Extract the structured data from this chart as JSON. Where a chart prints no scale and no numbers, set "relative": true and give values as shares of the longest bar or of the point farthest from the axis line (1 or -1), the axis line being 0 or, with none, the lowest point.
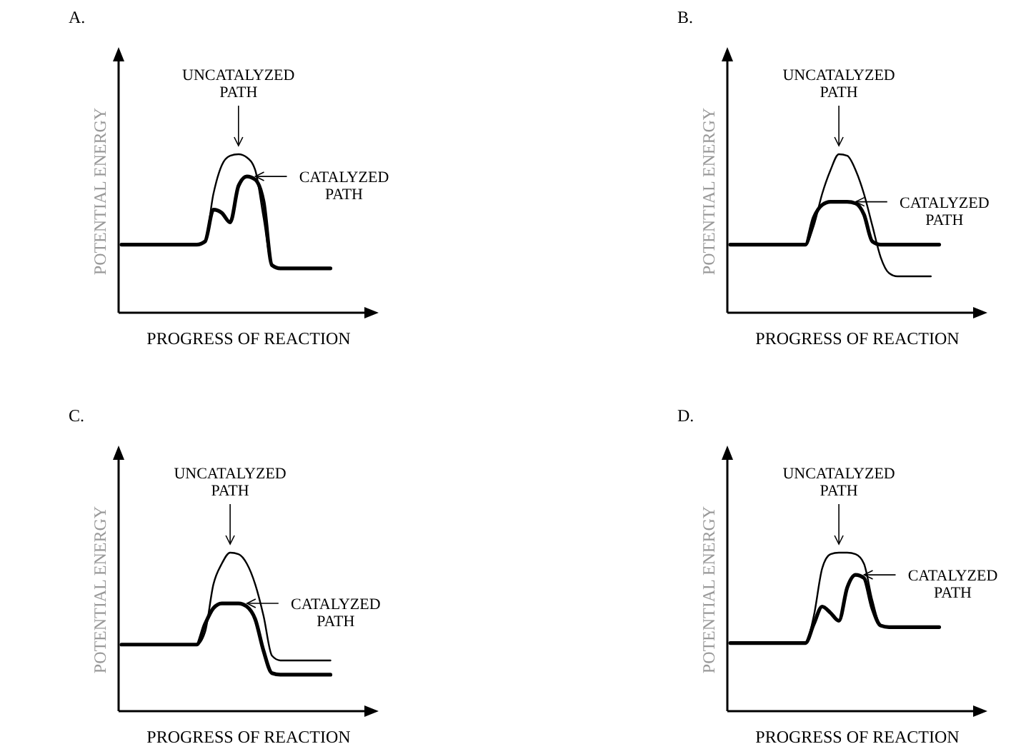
{
  "chart_data": [
    {
      "type": "line",
      "title": "A.",
      "xlabel": "PROGRESS OF REACTION",
      "ylabel": "POTENTIAL ENERGY",
      "relative": true,
      "categories": [
        null,
        null,
        null,
        null,
        null,
        null,
        null,
        null,
        null,
        null,
        null,
        null,
        null,
        null,
        null,
        null,
        null,
        null,
        null,
        null,
        null,
        null,
        null,
        null,
        null,
        null,
        null,
        null,
        null,
        null,
        null
      ],
      "series": [
        {
          "name": "UNCATALYZED PATH",
          "color": "#000000",
          "values": [
            0.43,
            0.43,
            0.43,
            0.43,
            0.43,
            0.43,
            0.43,
            0.43,
            0.43,
            0.43,
            0.45,
            0.75,
            0.93,
            0.99,
            1,
            0.98,
            0.9,
            0.6,
            0.3,
            0.28,
            0.28,
            0.28,
            0.28,
            0.28,
            0.28,
            0.28,
            null,
            null,
            null,
            null,
            null
          ]
        },
        {
          "name": "CATALYZED PATH",
          "color": "#000000",
          "values": [
            0.43,
            0.43,
            0.43,
            0.43,
            0.43,
            0.43,
            0.43,
            0.43,
            0.43,
            0.43,
            0.45,
            0.65,
            0.63,
            0.57,
            0.8,
            0.86,
            0.84,
            0.7,
            0.3,
            0.28,
            0.28,
            0.28,
            0.28,
            0.28,
            0.28,
            0.28,
            null,
            null,
            null,
            null,
            null
          ]
        }
      ]
    },
    {
      "type": "line",
      "title": "B.",
      "xlabel": "PROGRESS OF REACTION",
      "ylabel": "POTENTIAL ENERGY",
      "relative": true,
      "categories": [
        null,
        null,
        null,
        null,
        null,
        null,
        null,
        null,
        null,
        null,
        null,
        null,
        null,
        null,
        null,
        null,
        null,
        null,
        null,
        null,
        null,
        null,
        null,
        null,
        null,
        null,
        null,
        null,
        null,
        null,
        null
      ],
      "series": [
        {
          "name": "UNCATALYZED PATH",
          "color": "#000000",
          "values": [
            0.43,
            0.43,
            0.43,
            0.43,
            0.43,
            0.43,
            0.43,
            0.43,
            0.43,
            0.43,
            0.55,
            0.75,
            0.9,
            1,
            0.99,
            0.9,
            0.75,
            0.55,
            0.35,
            0.25,
            0.23,
            0.23,
            0.23,
            0.23,
            0.23,
            null,
            null,
            null,
            null,
            null,
            null
          ]
        },
        {
          "name": "CATALYZED PATH",
          "color": "#000000",
          "values": [
            0.43,
            0.43,
            0.43,
            0.43,
            0.43,
            0.43,
            0.43,
            0.43,
            0.43,
            0.43,
            0.6,
            0.68,
            0.7,
            0.7,
            0.7,
            0.69,
            0.62,
            0.45,
            0.43,
            0.43,
            0.43,
            0.43,
            0.43,
            0.43,
            0.43,
            0.43,
            null,
            null,
            null,
            null,
            null
          ]
        }
      ]
    },
    {
      "type": "line",
      "title": "C.",
      "xlabel": "PROGRESS OF REACTION",
      "ylabel": "POTENTIAL ENERGY",
      "relative": true,
      "categories": [
        null,
        null,
        null,
        null,
        null,
        null,
        null,
        null,
        null,
        null,
        null,
        null,
        null,
        null,
        null,
        null,
        null,
        null,
        null,
        null,
        null,
        null,
        null,
        null,
        null,
        null,
        null,
        null,
        null,
        null,
        null
      ],
      "series": [
        {
          "name": "UNCATALYZED PATH",
          "color": "#000000",
          "values": [
            0.42,
            0.42,
            0.42,
            0.42,
            0.42,
            0.42,
            0.42,
            0.42,
            0.42,
            0.42,
            0.5,
            0.8,
            0.93,
            1,
            0.99,
            0.93,
            0.8,
            0.6,
            0.35,
            0.32,
            0.32,
            0.32,
            0.32,
            0.32,
            0.32,
            0.32,
            null,
            null,
            null,
            null,
            null
          ]
        },
        {
          "name": "CATALYZED PATH",
          "color": "#000000",
          "values": [
            0.42,
            0.42,
            0.42,
            0.42,
            0.42,
            0.42,
            0.42,
            0.42,
            0.42,
            0.42,
            0.55,
            0.65,
            0.68,
            0.68,
            0.68,
            0.66,
            0.58,
            0.38,
            0.24,
            0.23,
            0.23,
            0.23,
            0.23,
            0.23,
            0.23,
            0.23,
            null,
            null,
            null,
            null,
            null
          ]
        }
      ]
    },
    {
      "type": "line",
      "title": "D.",
      "xlabel": "PROGRESS OF REACTION",
      "ylabel": "POTENTIAL ENERGY",
      "relative": true,
      "categories": [
        null,
        null,
        null,
        null,
        null,
        null,
        null,
        null,
        null,
        null,
        null,
        null,
        null,
        null,
        null,
        null,
        null,
        null,
        null,
        null,
        null,
        null,
        null,
        null,
        null,
        null,
        null,
        null,
        null,
        null,
        null
      ],
      "series": [
        {
          "name": "UNCATALYZED PATH",
          "color": "#000000",
          "values": [
            0.43,
            0.43,
            0.43,
            0.43,
            0.43,
            0.43,
            0.43,
            0.43,
            0.43,
            0.43,
            0.6,
            0.9,
            0.99,
            1,
            1,
            0.99,
            0.93,
            0.7,
            0.54,
            0.53,
            0.53,
            0.53,
            0.53,
            0.53,
            0.53,
            0.53,
            null,
            null,
            null,
            null,
            null
          ]
        },
        {
          "name": "CATALYZED PATH",
          "color": "#000000",
          "values": [
            0.43,
            0.43,
            0.43,
            0.43,
            0.43,
            0.43,
            0.43,
            0.43,
            0.43,
            0.43,
            0.55,
            0.66,
            0.62,
            0.57,
            0.78,
            0.86,
            0.84,
            0.65,
            0.54,
            0.53,
            0.53,
            0.53,
            0.53,
            0.53,
            0.53,
            0.53,
            null,
            null,
            null,
            null,
            null
          ]
        }
      ]
    }
  ]
}
